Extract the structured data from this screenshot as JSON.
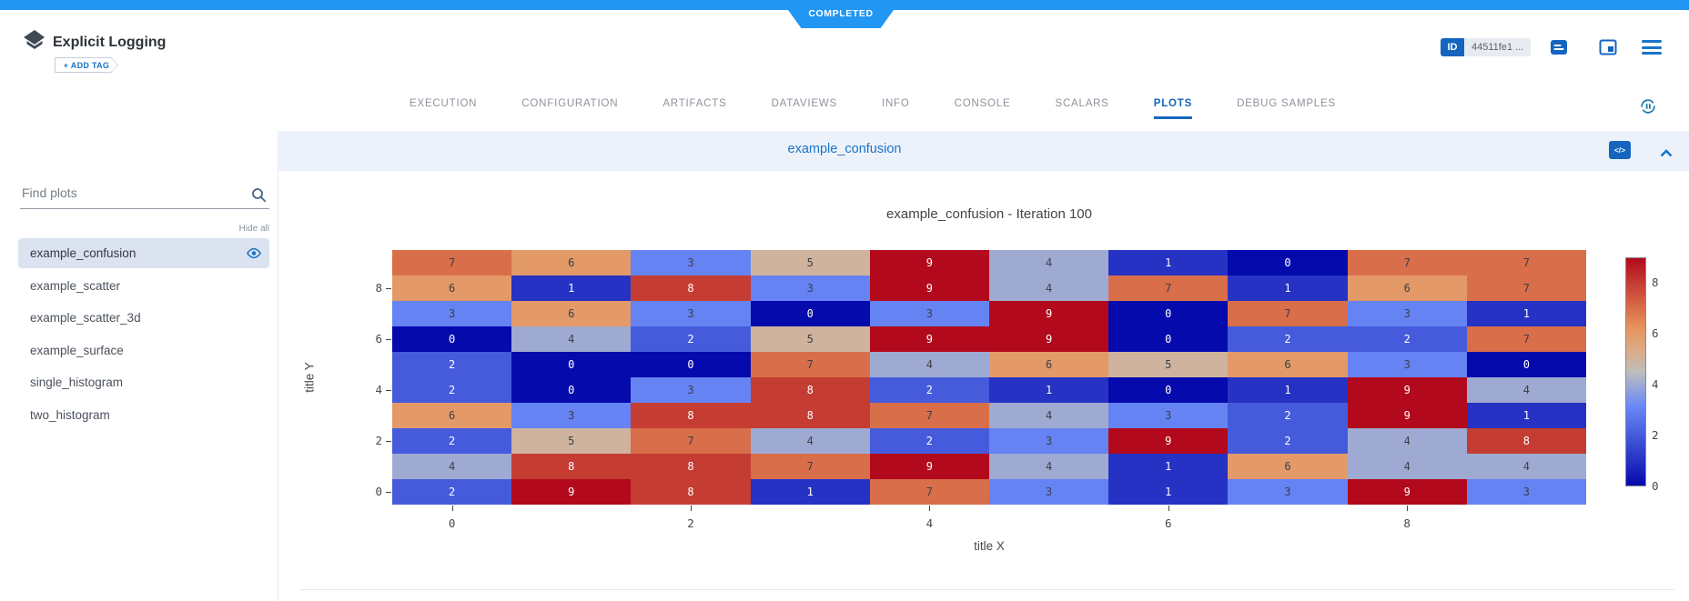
{
  "status_banner": {
    "label": "COMPLETED",
    "color": "#2196f3"
  },
  "header": {
    "app_title": "Explicit Logging",
    "add_tag_label": "+ ADD TAG",
    "id_badge": {
      "label": "ID",
      "value": "44511fe1 ..."
    }
  },
  "tabs": {
    "items": [
      "EXECUTION",
      "CONFIGURATION",
      "ARTIFACTS",
      "DATAVIEWS",
      "INFO",
      "CONSOLE",
      "SCALARS",
      "PLOTS",
      "DEBUG SAMPLES"
    ],
    "active": "PLOTS"
  },
  "sidebar": {
    "search_placeholder": "Find plots",
    "hide_all_label": "Hide all",
    "plots": [
      {
        "label": "example_confusion",
        "selected": true
      },
      {
        "label": "example_scatter",
        "selected": false
      },
      {
        "label": "example_scatter_3d",
        "selected": false
      },
      {
        "label": "example_surface",
        "selected": false
      },
      {
        "label": "single_histogram",
        "selected": false
      },
      {
        "label": "two_histogram",
        "selected": false
      }
    ]
  },
  "panel": {
    "title": "example_confusion",
    "code_button": "</>"
  },
  "chart_data": {
    "type": "heatmap",
    "title": "example_confusion - Iteration 100",
    "xlabel": "title X",
    "ylabel": "title Y",
    "x_ticks": [
      0,
      2,
      4,
      6,
      8
    ],
    "y_ticks": [
      8,
      6,
      4,
      2,
      0
    ],
    "x_range": [
      -0.5,
      9.5
    ],
    "y_range": [
      -0.5,
      9.5
    ],
    "grid": false,
    "z_rows_top_to_bottom_y9_to_y0": [
      [
        7,
        6,
        3,
        5,
        9,
        4,
        1,
        0,
        7,
        7
      ],
      [
        6,
        1,
        8,
        3,
        9,
        4,
        7,
        1,
        6,
        7
      ],
      [
        3,
        6,
        3,
        0,
        3,
        9,
        0,
        7,
        3,
        1
      ],
      [
        0,
        4,
        2,
        5,
        9,
        9,
        0,
        2,
        2,
        7
      ],
      [
        2,
        0,
        0,
        7,
        4,
        6,
        5,
        6,
        3,
        0
      ],
      [
        2,
        0,
        3,
        8,
        2,
        1,
        0,
        1,
        9,
        4
      ],
      [
        6,
        3,
        8,
        8,
        7,
        4,
        3,
        2,
        9,
        1
      ],
      [
        2,
        5,
        7,
        4,
        2,
        3,
        9,
        2,
        4,
        8
      ],
      [
        4,
        8,
        8,
        7,
        9,
        4,
        1,
        6,
        4,
        4
      ],
      [
        2,
        9,
        8,
        1,
        7,
        3,
        1,
        3,
        9,
        3
      ]
    ],
    "colorbar": {
      "ticks": [
        8,
        6,
        4,
        2,
        0
      ],
      "min": 0,
      "max": 9,
      "position": "right"
    },
    "colorscale": [
      [
        "0.00",
        "#050aac"
      ],
      [
        "0.35",
        "#6a89f7"
      ],
      [
        "0.50",
        "#bebebe"
      ],
      [
        "0.60",
        "#dcaa84"
      ],
      [
        "0.70",
        "#e6915a"
      ],
      [
        "1.00",
        "#b20a1c"
      ]
    ],
    "value_colors": {
      "0": "#050aac",
      "1": "#2532c4",
      "2": "#455bdc",
      "3": "#6583f3",
      "4": "#9faad3",
      "5": "#cfb39e",
      "6": "#e39968",
      "7": "#d86e4a",
      "8": "#c53c33",
      "9": "#b20a1c"
    },
    "light_text_values": [
      0,
      1,
      2,
      8,
      9
    ],
    "dark_text_color": "#3b4046"
  }
}
